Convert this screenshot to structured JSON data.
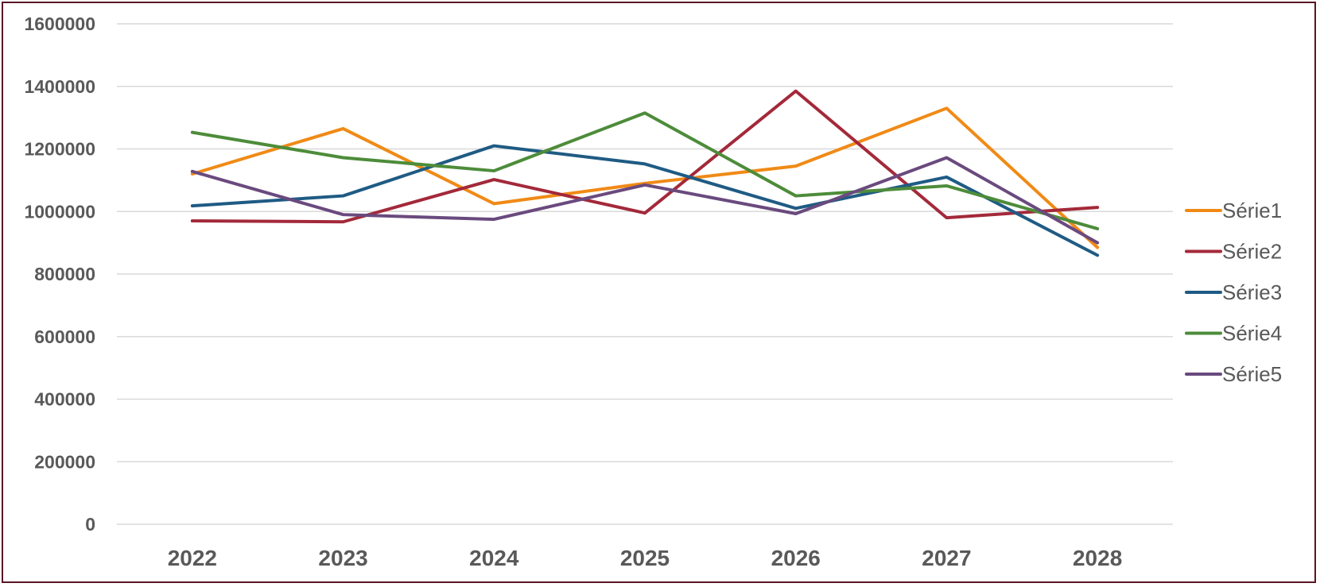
{
  "chart_data": {
    "type": "line",
    "categories": [
      "2022",
      "2023",
      "2024",
      "2025",
      "2026",
      "2027",
      "2028"
    ],
    "ylim": [
      0,
      1600000
    ],
    "yticks": [
      "0",
      "200000",
      "400000",
      "600000",
      "800000",
      "1000000",
      "1200000",
      "1400000",
      "1600000"
    ],
    "grid": true,
    "legend_position": "right",
    "series": [
      {
        "name": "Série1",
        "color": "#F08A16",
        "values": [
          1120000,
          1265000,
          1025000,
          1090000,
          1145000,
          1330000,
          885000
        ]
      },
      {
        "name": "Série2",
        "color": "#A3293A",
        "values": [
          970000,
          967000,
          1102000,
          995000,
          1385000,
          980000,
          1013000
        ]
      },
      {
        "name": "Série3",
        "color": "#1F5B84",
        "values": [
          1018000,
          1050000,
          1210000,
          1152000,
          1010000,
          1110000,
          860000
        ]
      },
      {
        "name": "Série4",
        "color": "#4D8C3A",
        "values": [
          1253000,
          1172000,
          1130000,
          1315000,
          1050000,
          1082000,
          945000
        ]
      },
      {
        "name": "Série5",
        "color": "#6A4A7E",
        "values": [
          1128000,
          990000,
          975000,
          1085000,
          993000,
          1172000,
          900000
        ]
      }
    ]
  }
}
